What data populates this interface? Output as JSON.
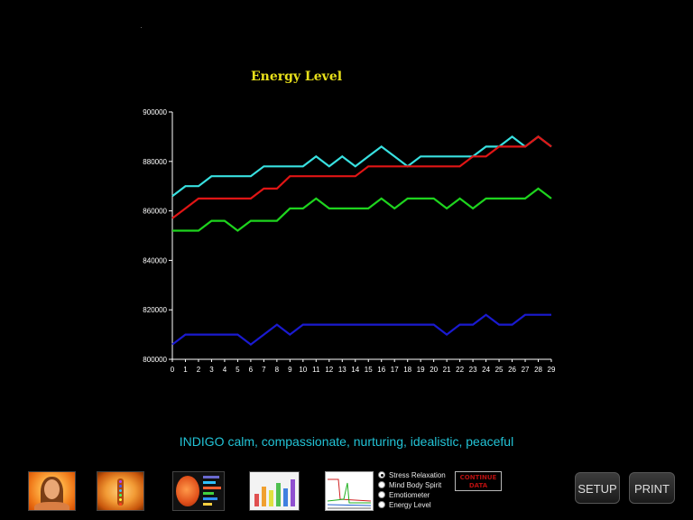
{
  "chart_data": {
    "type": "line",
    "title": "Energy Level",
    "xlabel": "",
    "ylabel": "",
    "x": [
      0,
      1,
      2,
      3,
      4,
      5,
      6,
      7,
      8,
      9,
      10,
      11,
      12,
      13,
      14,
      15,
      16,
      17,
      18,
      19,
      20,
      21,
      22,
      23,
      24,
      25,
      26,
      27,
      28,
      29
    ],
    "xlim": [
      0,
      29
    ],
    "ylim": [
      800000,
      900000
    ],
    "y_ticks": [
      800000,
      820000,
      840000,
      860000,
      880000,
      900000
    ],
    "grid": false,
    "series": [
      {
        "color": "#38e0e0",
        "values": [
          866000,
          870000,
          870000,
          874000,
          874000,
          874000,
          874000,
          878000,
          878000,
          878000,
          878000,
          882000,
          878000,
          882000,
          878000,
          882000,
          886000,
          882000,
          878000,
          882000,
          882000,
          882000,
          882000,
          882000,
          886000,
          886000,
          890000,
          886000,
          890000,
          886000
        ]
      },
      {
        "color": "#e01515",
        "values": [
          857000,
          861000,
          865000,
          865000,
          865000,
          865000,
          865000,
          869000,
          869000,
          874000,
          874000,
          874000,
          874000,
          874000,
          874000,
          878000,
          878000,
          878000,
          878000,
          878000,
          878000,
          878000,
          878000,
          882000,
          882000,
          886000,
          886000,
          886000,
          890000,
          886000
        ]
      },
      {
        "color": "#1ed41e",
        "values": [
          852000,
          852000,
          852000,
          856000,
          856000,
          852000,
          856000,
          856000,
          856000,
          861000,
          861000,
          865000,
          861000,
          861000,
          861000,
          861000,
          865000,
          861000,
          865000,
          865000,
          865000,
          861000,
          865000,
          861000,
          865000,
          865000,
          865000,
          865000,
          869000,
          865000
        ]
      },
      {
        "color": "#1a1ad0",
        "values": [
          806000,
          810000,
          810000,
          810000,
          810000,
          810000,
          806000,
          810000,
          814000,
          810000,
          814000,
          814000,
          814000,
          814000,
          814000,
          814000,
          814000,
          814000,
          814000,
          814000,
          814000,
          810000,
          814000,
          814000,
          818000,
          814000,
          814000,
          818000,
          818000,
          818000
        ]
      }
    ]
  },
  "mood_text": "INDIGO calm, compassionate, nurturing, idealistic, peaceful",
  "toolbar": {
    "thumbnails": [
      "aura-face-thumbnail",
      "chakra-body-thumbnail",
      "organ-analysis-thumbnail",
      "color-grid-thumbnail",
      "graph-thumbnail"
    ],
    "view_options": [
      {
        "label": "Stress Relaxation",
        "selected": true
      },
      {
        "label": "Mind Body Spirit",
        "selected": false
      },
      {
        "label": "Emotiometer",
        "selected": false
      },
      {
        "label": "Energy Level",
        "selected": false
      }
    ],
    "continue_line1": "CONTINUE",
    "continue_line2": "DATA",
    "setup_label": "SETUP",
    "print_label": "PRINT"
  },
  "colors": {
    "background": "#000000",
    "title": "#e8e01a",
    "mood_text": "#22c3d6",
    "axis": "#ffffff",
    "continue_text": "#b50f0f"
  }
}
